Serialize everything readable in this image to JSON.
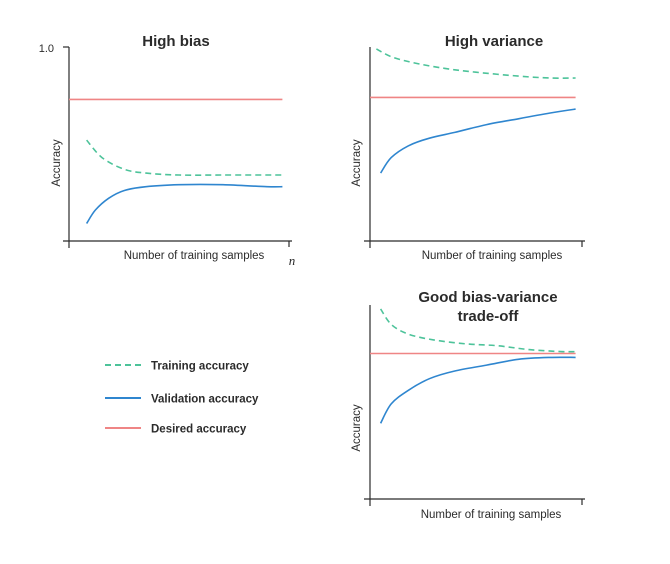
{
  "colors": {
    "training": "#4dc39a",
    "validation": "#2f86cf",
    "desired": "#ef8585",
    "axis": "#2b2b2b"
  },
  "legend": {
    "training": "Training accuracy",
    "validation": "Validation accuracy",
    "desired": "Desired accuracy"
  },
  "chart_data": [
    {
      "type": "line",
      "title": "High bias",
      "title_lines": [
        "High bias"
      ],
      "xlabel": "Number of training samples",
      "ylabel": "Accuracy",
      "ytick_label": "1.0",
      "x_end_label": "n",
      "xlim": [
        0,
        1
      ],
      "ylim": [
        0,
        1
      ],
      "grid": false,
      "series": [
        {
          "name": "Training accuracy",
          "style": "dashed",
          "x": [
            0.08,
            0.15,
            0.25,
            0.35,
            0.5,
            0.7,
            0.9,
            0.97
          ],
          "y": [
            0.52,
            0.43,
            0.37,
            0.35,
            0.34,
            0.34,
            0.34,
            0.34
          ]
        },
        {
          "name": "Validation accuracy",
          "style": "solid",
          "x": [
            0.08,
            0.12,
            0.18,
            0.25,
            0.35,
            0.5,
            0.7,
            0.9,
            0.97
          ],
          "y": [
            0.09,
            0.16,
            0.22,
            0.26,
            0.28,
            0.29,
            0.29,
            0.28,
            0.28
          ]
        },
        {
          "name": "Desired accuracy",
          "style": "solid",
          "x": [
            0,
            0.97
          ],
          "y": [
            0.73,
            0.73
          ]
        }
      ]
    },
    {
      "type": "line",
      "title": "High variance",
      "title_lines": [
        "High variance"
      ],
      "xlabel": "Number of training samples",
      "ylabel": "Accuracy",
      "xlim": [
        0,
        1
      ],
      "ylim": [
        0,
        1
      ],
      "grid": false,
      "series": [
        {
          "name": "Training accuracy",
          "style": "dashed",
          "x": [
            0.03,
            0.1,
            0.2,
            0.35,
            0.5,
            0.7,
            0.85,
            0.97
          ],
          "y": [
            0.99,
            0.95,
            0.92,
            0.89,
            0.87,
            0.85,
            0.84,
            0.84
          ]
        },
        {
          "name": "Validation accuracy",
          "style": "solid",
          "x": [
            0.05,
            0.1,
            0.18,
            0.28,
            0.4,
            0.55,
            0.7,
            0.85,
            0.97
          ],
          "y": [
            0.35,
            0.43,
            0.49,
            0.53,
            0.56,
            0.6,
            0.63,
            0.66,
            0.68
          ]
        },
        {
          "name": "Desired accuracy",
          "style": "solid",
          "x": [
            0,
            0.97
          ],
          "y": [
            0.74,
            0.74
          ]
        }
      ]
    },
    {
      "type": "line",
      "title": "Good bias-variance trade-off",
      "title_lines": [
        "Good bias-variance",
        "trade-off"
      ],
      "xlabel": "Number of training samples",
      "ylabel": "Accuracy",
      "xlim": [
        0,
        1
      ],
      "ylim": [
        0,
        1
      ],
      "grid": false,
      "series": [
        {
          "name": "Training accuracy",
          "style": "dashed",
          "x": [
            0.05,
            0.1,
            0.18,
            0.3,
            0.45,
            0.6,
            0.75,
            0.9,
            0.97
          ],
          "y": [
            0.98,
            0.9,
            0.85,
            0.82,
            0.8,
            0.79,
            0.77,
            0.76,
            0.76
          ]
        },
        {
          "name": "Validation accuracy",
          "style": "solid",
          "x": [
            0.05,
            0.1,
            0.18,
            0.28,
            0.4,
            0.55,
            0.7,
            0.85,
            0.97
          ],
          "y": [
            0.39,
            0.49,
            0.56,
            0.62,
            0.66,
            0.69,
            0.72,
            0.73,
            0.73
          ]
        },
        {
          "name": "Desired accuracy",
          "style": "solid",
          "x": [
            0,
            0.97
          ],
          "y": [
            0.75,
            0.75
          ]
        }
      ]
    }
  ]
}
